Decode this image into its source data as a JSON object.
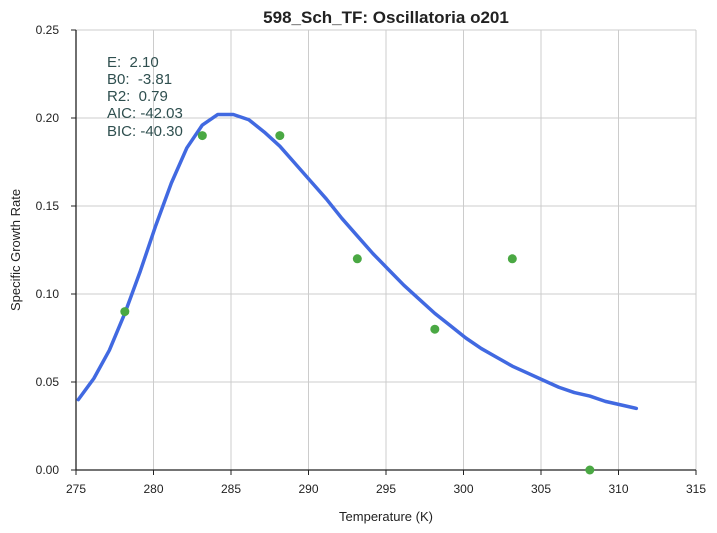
{
  "chart_data": {
    "type": "scatter",
    "title": "598_Sch_TF: Oscillatoria o201",
    "xlabel": "Temperature (K)",
    "ylabel": "Specific Growth Rate",
    "xlim": [
      275,
      315
    ],
    "ylim": [
      0,
      0.25
    ],
    "xticks": [
      275,
      280,
      285,
      290,
      295,
      300,
      305,
      310,
      315
    ],
    "xtick_labels": [
      "275",
      "280",
      "285",
      "290",
      "295",
      "300",
      "305",
      "310",
      "315"
    ],
    "yticks": [
      0,
      0.05,
      0.1,
      0.15,
      0.2,
      0.25
    ],
    "ytick_labels": [
      "0.00",
      "0.05",
      "0.10",
      "0.15",
      "0.20",
      "0.25"
    ],
    "grid": true,
    "series": [
      {
        "kind": "points",
        "color": "#4aa843",
        "x": [
          278.15,
          283.15,
          288.15,
          293.15,
          298.15,
          303.15,
          308.15
        ],
        "y": [
          0.09,
          0.19,
          0.19,
          0.12,
          0.08,
          0.12,
          0.0
        ]
      },
      {
        "kind": "fitted-curve",
        "color": "#4169e1",
        "x": [
          275.15,
          276.15,
          277.15,
          278.15,
          279.15,
          280.15,
          281.15,
          282.15,
          283.15,
          284.15,
          285.15,
          286.15,
          287.15,
          288.15,
          289.15,
          290.15,
          291.15,
          292.15,
          293.15,
          294.15,
          295.15,
          296.15,
          297.15,
          298.15,
          299.15,
          300.15,
          301.15,
          302.15,
          303.15,
          304.15,
          305.15,
          306.15,
          307.15,
          308.15,
          309.15,
          310.15,
          311.15
        ],
        "y": [
          0.04,
          0.052,
          0.068,
          0.089,
          0.113,
          0.139,
          0.163,
          0.183,
          0.196,
          0.202,
          0.202,
          0.199,
          0.192,
          0.184,
          0.174,
          0.164,
          0.154,
          0.143,
          0.133,
          0.123,
          0.114,
          0.105,
          0.097,
          0.089,
          0.082,
          0.075,
          0.069,
          0.064,
          0.059,
          0.055,
          0.051,
          0.047,
          0.044,
          0.042,
          0.039,
          0.037,
          0.035
        ]
      }
    ],
    "annotations": [
      "E:  2.10",
      "B0:  -3.81",
      "R2:  0.79",
      "AIC: -42.03",
      "BIC: -40.30"
    ]
  }
}
